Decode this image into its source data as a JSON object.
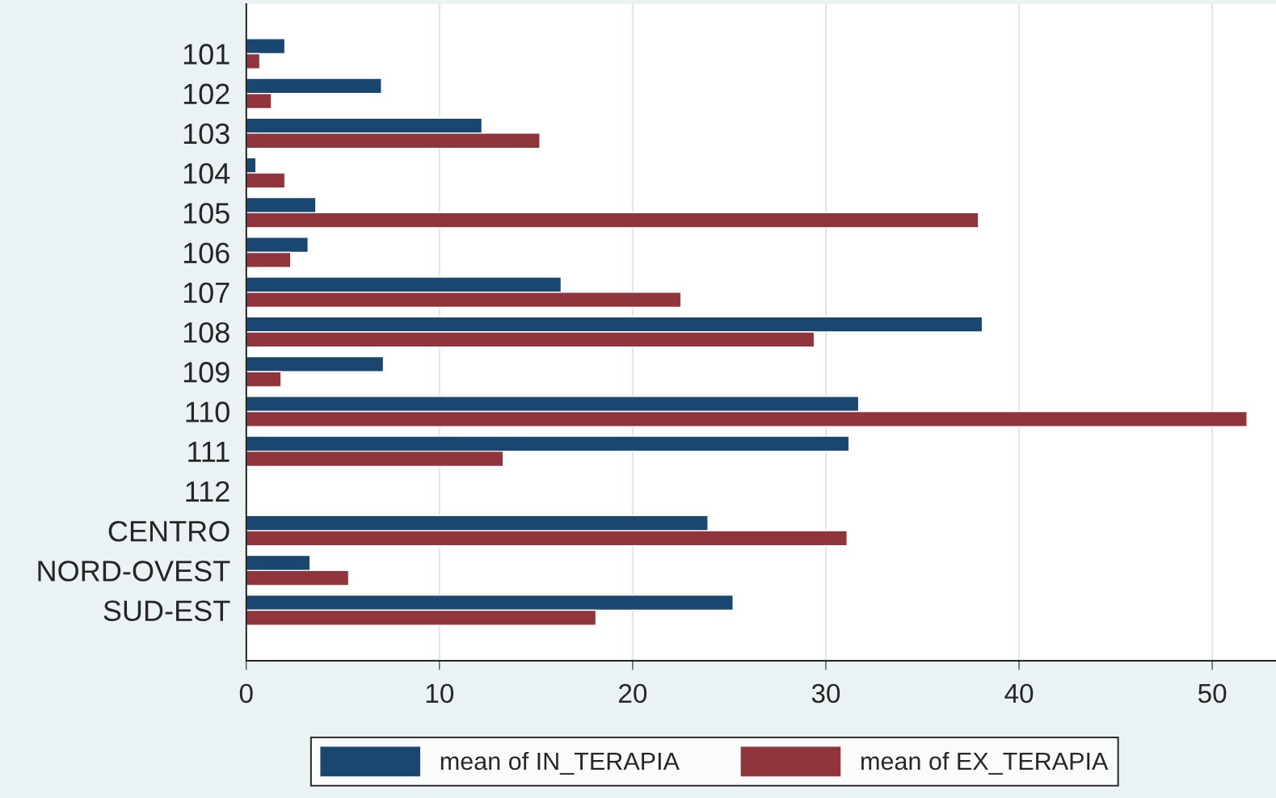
{
  "chart_data": {
    "type": "bar",
    "orientation": "horizontal",
    "categories": [
      "101",
      "102",
      "103",
      "104",
      "105",
      "106",
      "107",
      "108",
      "109",
      "110",
      "111",
      "112",
      "CENTRO",
      "NORD-OVEST",
      "SUD-EST"
    ],
    "series": [
      {
        "name": "mean of IN_TERAPIA",
        "color": "#1a476f",
        "values": [
          2.0,
          7.0,
          12.2,
          0.5,
          3.6,
          3.2,
          16.3,
          38.1,
          7.1,
          31.7,
          31.2,
          null,
          23.9,
          3.3,
          25.2
        ]
      },
      {
        "name": "mean of EX_TERAPIA",
        "color": "#90353b",
        "values": [
          0.7,
          1.3,
          15.2,
          2.0,
          37.9,
          2.3,
          22.5,
          29.4,
          1.8,
          51.8,
          13.3,
          null,
          31.1,
          5.3,
          18.1
        ]
      }
    ],
    "xlim": [
      0,
      53.3
    ],
    "xticks": [
      0,
      10,
      20,
      30,
      40,
      50
    ],
    "grid": "x",
    "legend": "bottom"
  }
}
